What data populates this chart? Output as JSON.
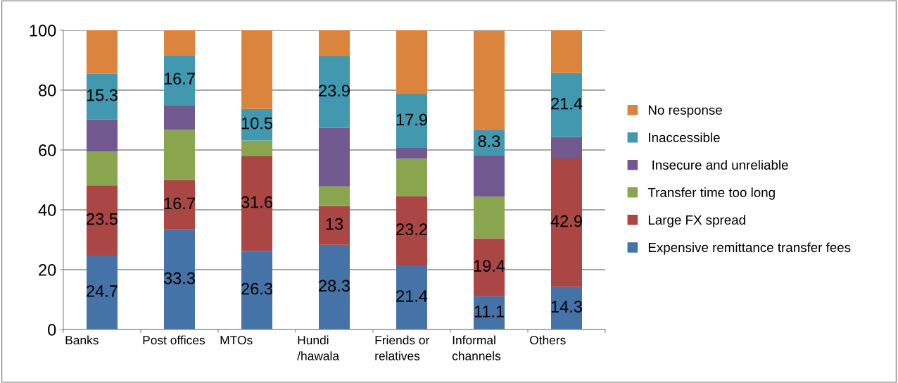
{
  "chart_data": {
    "type": "bar",
    "stacked": true,
    "categories": [
      "Banks",
      "Post offices",
      "MTOs",
      "Hundi\n/hawala",
      "Friends or\nrelatives",
      "Informal\nchannels",
      "Others"
    ],
    "series": [
      {
        "name": "Expensive remittance transfer fees",
        "color": "#4572a7",
        "values": [
          24.7,
          33.3,
          26.3,
          28.3,
          21.4,
          11.1,
          14.3
        ],
        "value_labels": [
          "24.7",
          "33.3",
          "26.3",
          "28.3",
          "21.4",
          "11.1",
          "14.3"
        ]
      },
      {
        "name": "Large FX spread",
        "color": "#aa4643",
        "values": [
          23.5,
          16.7,
          31.6,
          13,
          23.2,
          19.4,
          42.9
        ],
        "value_labels": [
          "23.5",
          "16.7",
          "31.6",
          "13",
          "23.2",
          "19.4",
          "42.9"
        ]
      },
      {
        "name": "Transfer time too long",
        "color": "#89a54e",
        "values": [
          11.3,
          16.7,
          5.3,
          6.5,
          12.5,
          13.9,
          0
        ]
      },
      {
        "name": " Insecure and unreliable",
        "color": "#71588f",
        "values": [
          10.7,
          8.3,
          0,
          19.6,
          3.6,
          13.9,
          7.1
        ]
      },
      {
        "name": "Inaccessible",
        "color": "#4198af",
        "values": [
          15.3,
          16.7,
          10.5,
          23.9,
          17.9,
          8.3,
          21.4
        ],
        "value_labels": [
          "15.3",
          "16.7",
          "10.5",
          "23.9",
          "17.9",
          "8.3",
          "21.4"
        ]
      },
      {
        "name": "No response",
        "color": "#db843d",
        "values": [
          14.5,
          8.3,
          26.3,
          8.7,
          21.4,
          33.3,
          14.3
        ]
      }
    ],
    "ylim": [
      0,
      100
    ],
    "yticks": [
      0,
      20,
      40,
      60,
      80,
      100
    ],
    "grid": "y",
    "legend": "right"
  }
}
